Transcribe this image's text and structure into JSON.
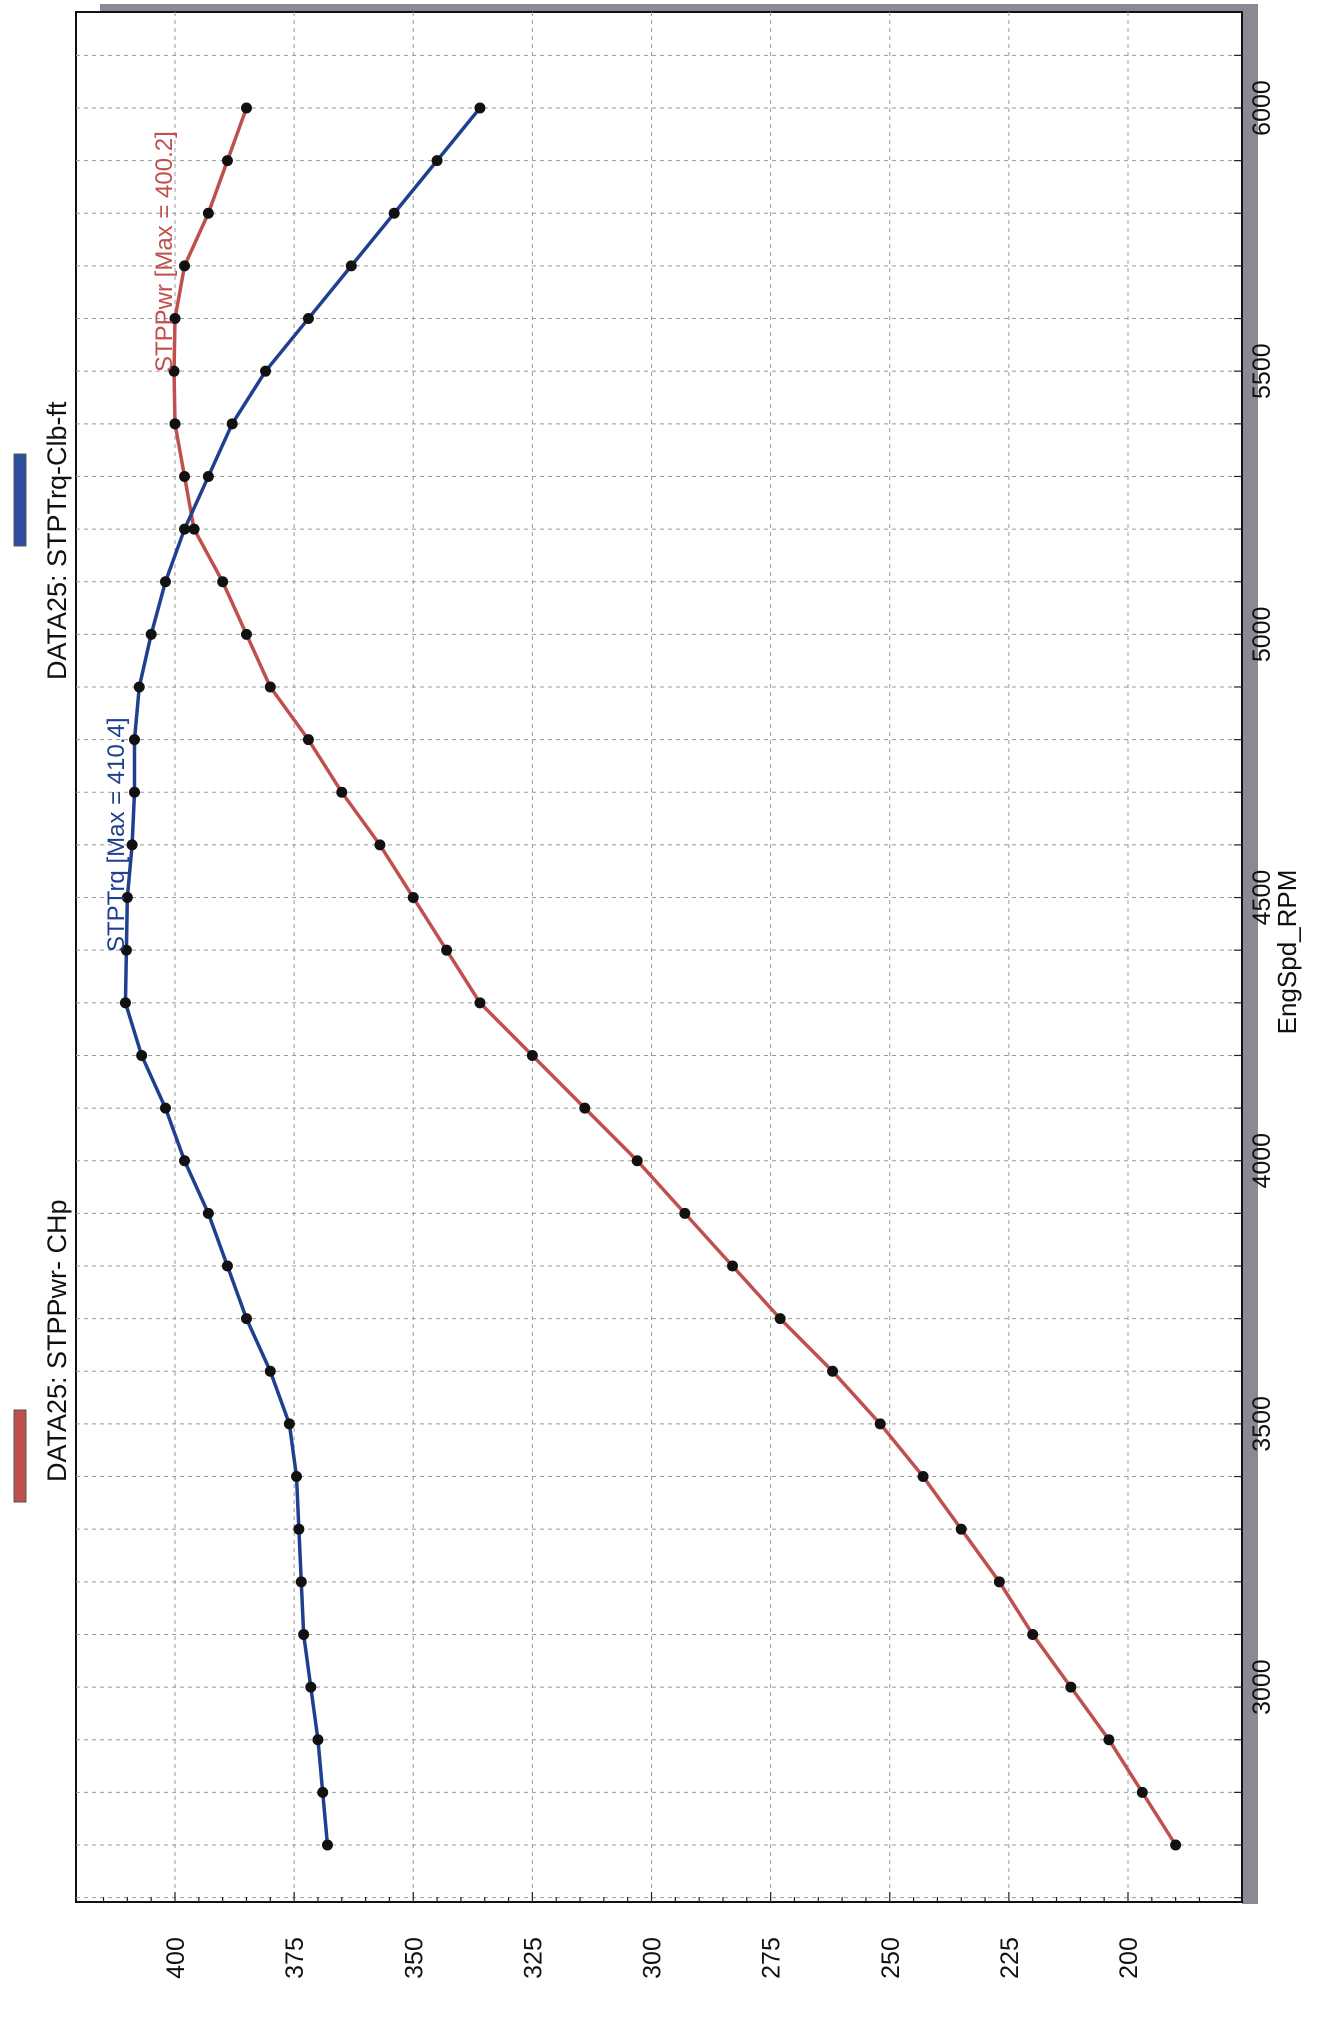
{
  "chart_data": {
    "type": "line",
    "orientation": "rotated-90-ccw",
    "xlabel": "EngSpd_RPM",
    "x_ticks": [
      3000,
      3500,
      4000,
      4500,
      5000,
      5500,
      6000
    ],
    "xlim": [
      2500,
      6200
    ],
    "y_ticks": [
      200,
      225,
      250,
      275,
      300,
      325,
      350,
      375,
      400
    ],
    "ylim": [
      182,
      420
    ],
    "grid": true,
    "legend": [
      {
        "label": "DATA25: STPPwr- CHp",
        "color": "#c0504d"
      },
      {
        "label": "DATA25: STPTrq-Clb-ft",
        "color": "#2f4f9f"
      }
    ],
    "x": [
      2700,
      2800,
      2900,
      3000,
      3100,
      3200,
      3300,
      3400,
      3500,
      3600,
      3700,
      3800,
      3900,
      4000,
      4100,
      4200,
      4300,
      4400,
      4500,
      4600,
      4700,
      4800,
      4900,
      5000,
      5100,
      5200,
      5300,
      5400,
      5500,
      5600,
      5700,
      5800,
      5900,
      6000
    ],
    "series": [
      {
        "name": "STPPwr",
        "color": "#c0504d",
        "annotation": "STPPwr [Max = 400.2]",
        "values": [
          190,
          197,
          204,
          212,
          220,
          227,
          235,
          243,
          252,
          262,
          273,
          283,
          293,
          303,
          314,
          325,
          336,
          343,
          350,
          357,
          365,
          372,
          380,
          385,
          390,
          396,
          398,
          400,
          400.2,
          400,
          398,
          393,
          389,
          385
        ]
      },
      {
        "name": "STPTrq",
        "color": "#1f3f8f",
        "annotation": "STPTrq [Max = 410.4]",
        "values": [
          368,
          369,
          370,
          371.5,
          373,
          373.5,
          374,
          374.5,
          376,
          380,
          385,
          389,
          393,
          398,
          402,
          407,
          410.4,
          410.2,
          410,
          409,
          408.5,
          408.5,
          407.5,
          405,
          402,
          398,
          393,
          388,
          381,
          372,
          363,
          354,
          345,
          336
        ]
      }
    ]
  }
}
